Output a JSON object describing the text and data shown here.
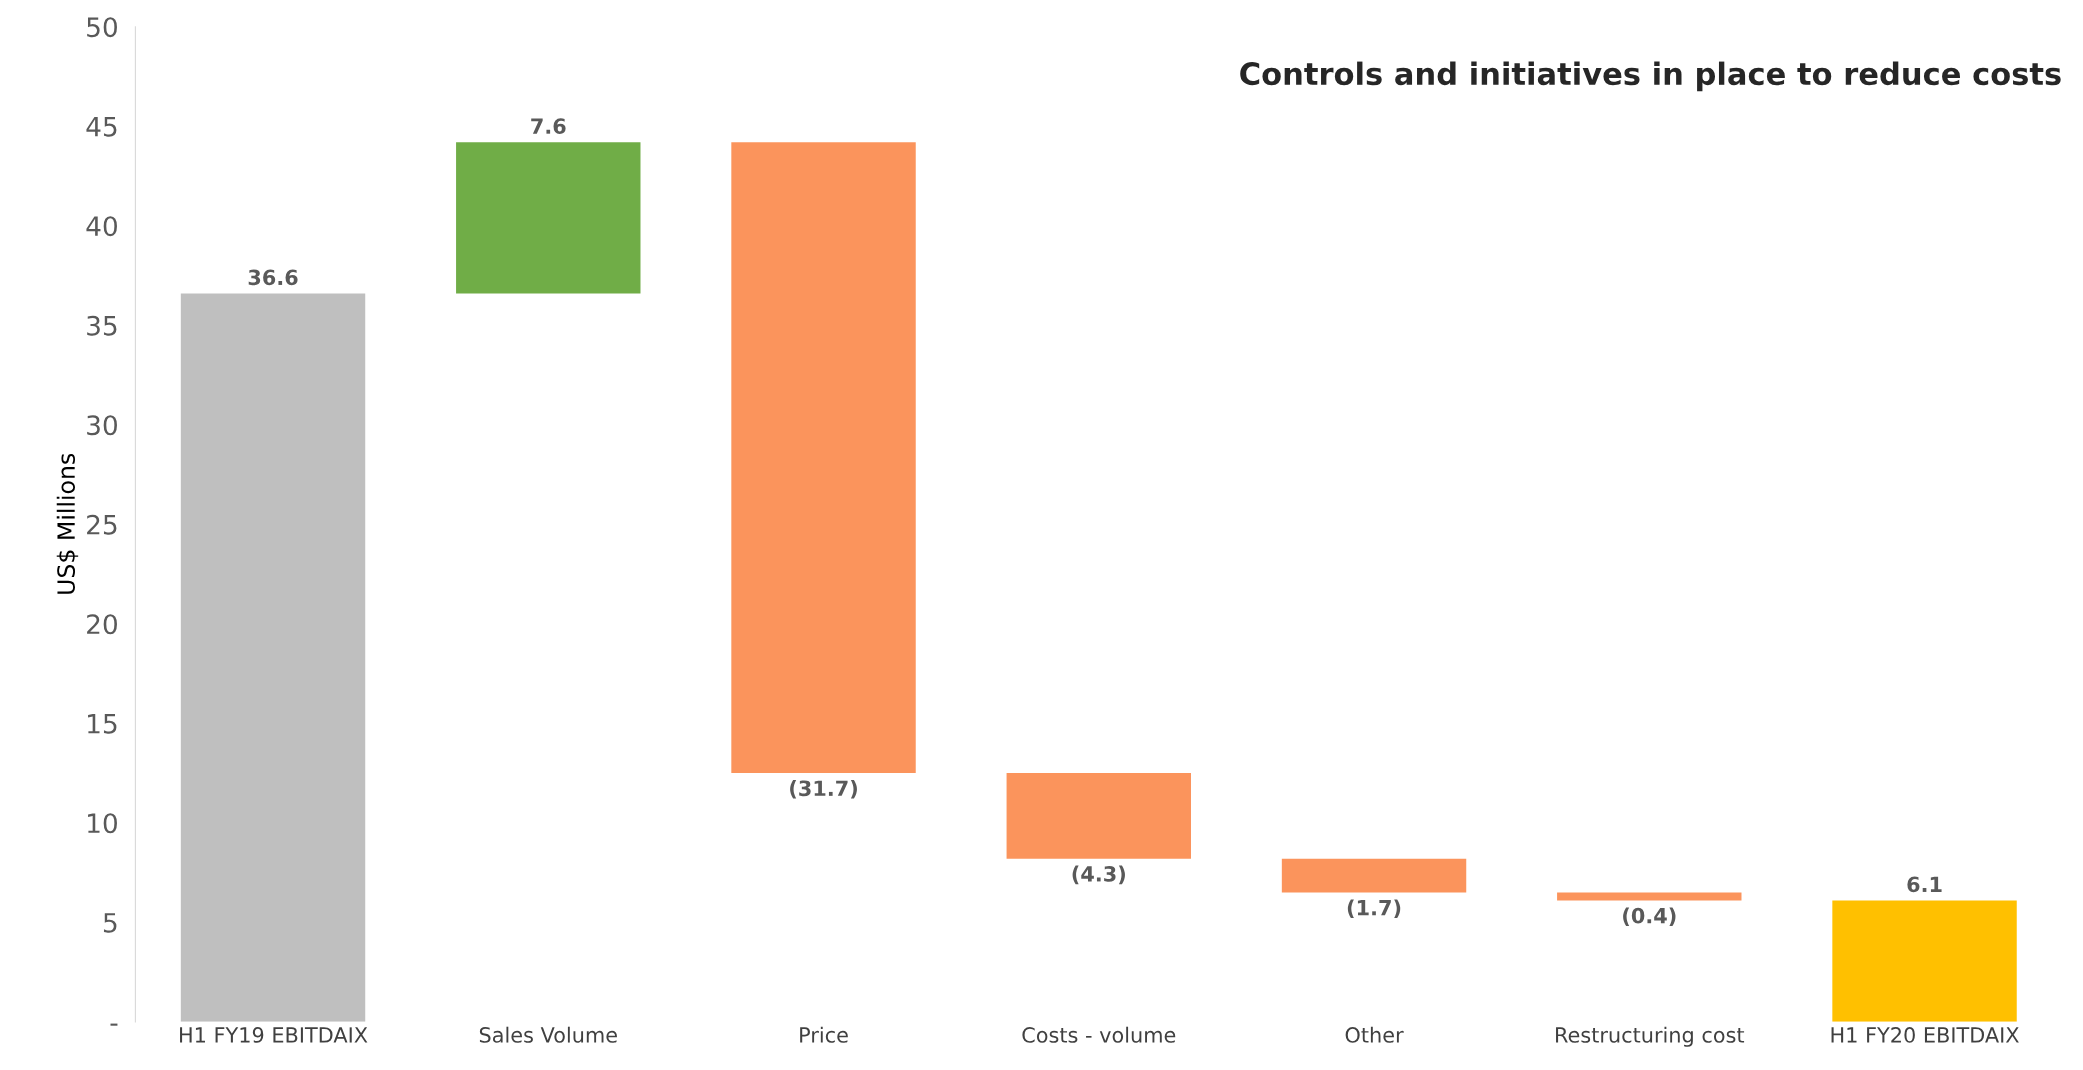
{
  "chart_data": {
    "type": "bar",
    "title": "Controls and initiatives in place to reduce costs",
    "ylabel": "US$ Millions",
    "categories": [
      "H1 FY19 EBITDAIX",
      "Sales Volume",
      "Price",
      "Costs - volume",
      "Other",
      "Restructuring cost",
      "H1 FY20 EBITDAIX"
    ],
    "values": [
      36.6,
      7.6,
      -31.7,
      -4.3,
      -1.7,
      -0.4,
      6.1
    ],
    "base": [
      0,
      36.6,
      44.2,
      12.5,
      8.2,
      6.5,
      0
    ],
    "colors": [
      "#bfbfbf",
      "#70ad47",
      "#fb945c",
      "#fb945c",
      "#fb945c",
      "#fb945c",
      "#ffc000"
    ],
    "value_labels": [
      "36.6",
      "7.6",
      "(31.7)",
      "(4.3)",
      "(1.7)",
      "(0.4)",
      "6.1"
    ],
    "ylim": [
      0,
      50
    ],
    "yticks": [
      {
        "value": 0,
        "label": "-"
      },
      5,
      10,
      15,
      20,
      25,
      30,
      35,
      40,
      45,
      50
    ],
    "grid": false,
    "legend": false
  }
}
